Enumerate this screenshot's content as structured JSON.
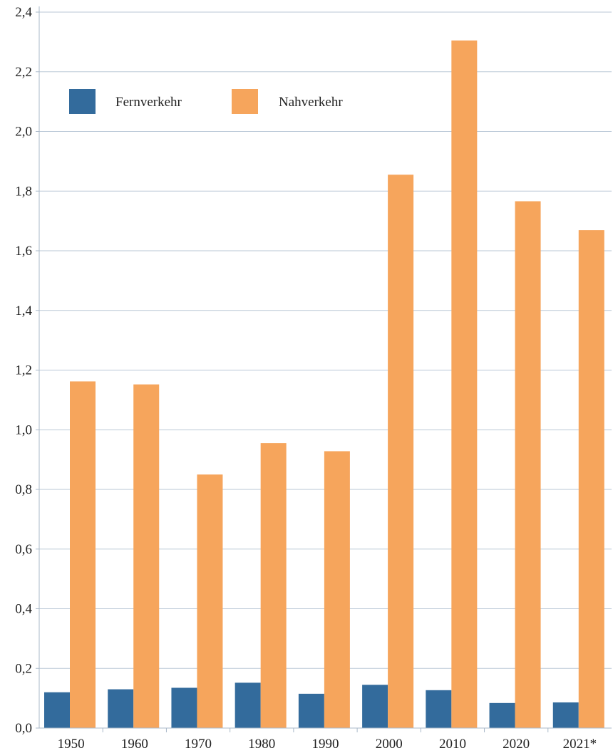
{
  "chart_data": {
    "type": "bar",
    "title": "",
    "xlabel": "",
    "ylabel": "",
    "categories": [
      "1950",
      "1960",
      "1970",
      "1980",
      "1990",
      "2000",
      "2010",
      "2020",
      "2021*"
    ],
    "series": [
      {
        "name": "Fernverkehr",
        "color": "#336b9c",
        "values": [
          0.12,
          0.13,
          0.135,
          0.152,
          0.115,
          0.145,
          0.127,
          0.084,
          0.086
        ]
      },
      {
        "name": "Nahverkehr",
        "color": "#f6a55c",
        "values": [
          1.162,
          1.152,
          0.85,
          0.955,
          0.928,
          1.855,
          2.305,
          1.766,
          1.669
        ]
      }
    ],
    "ylim": [
      0,
      2.4
    ],
    "yticks": [
      0,
      0.2,
      0.4,
      0.6,
      0.8,
      1.0,
      1.2,
      1.4,
      1.6,
      1.8,
      2.0,
      2.2,
      2.4
    ],
    "ytick_labels": [
      "0,0",
      "0,2",
      "0,4",
      "0,6",
      "0,8",
      "1,0",
      "1,2",
      "1,4",
      "1,6",
      "1,8",
      "2,0",
      "2,2",
      "2,4"
    ],
    "grid": true,
    "legend_position": "top-left"
  }
}
